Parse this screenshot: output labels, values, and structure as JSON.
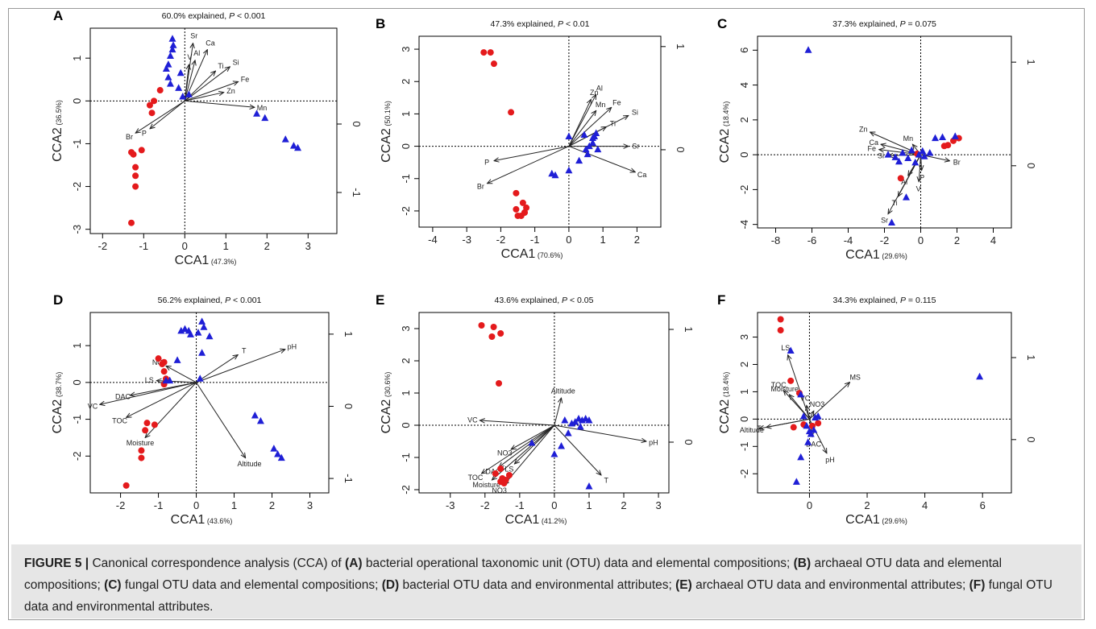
{
  "caption": {
    "figure_label": "FIGURE 5 |",
    "lead": " Canonical correspondence analysis (CCA) of ",
    "parts": [
      {
        "tag": "(A)",
        "text": " bacterial operational taxonomic unit (OTU) data and elemental compositions; "
      },
      {
        "tag": "(B)",
        "text": " archaeal OTU data and elemental compositions; "
      },
      {
        "tag": "(C)",
        "text": " fungal OTU data and elemental compositions; "
      },
      {
        "tag": "(D)",
        "text": " bacterial OTU data and environmental attributes; "
      },
      {
        "tag": "(E)",
        "text": " archaeal OTU data and environmental attributes; "
      },
      {
        "tag": "(F)",
        "text": " fungal OTU data and environmental attributes."
      }
    ]
  },
  "colors": {
    "red": "#e41a1c",
    "blue": "#1f1fd6",
    "axis": "#000000",
    "arrow": "#222222"
  },
  "chart_data": [
    {
      "type": "scatter",
      "panel": "A",
      "title": "60.0% explained, ",
      "p_text": "P",
      "p_rel": " < 0.001",
      "xlabel": "CCA1",
      "xlabel_pct": "(47.3%)",
      "ylabel": "CCA2",
      "ylabel_pct": "(36.5%)",
      "xlim": [
        -2.3,
        3.7
      ],
      "ylim": [
        -3.1,
        1.7
      ],
      "y2lim": [
        -1.6,
        1.4
      ],
      "xticks": [
        "-2",
        "-1",
        "0",
        "1",
        "2",
        "3"
      ],
      "yticks": [
        "-3",
        "-2",
        "-1",
        "0",
        "1"
      ],
      "y2ticks": [
        "-1",
        "0"
      ],
      "red_points": [
        [
          -1.3,
          -2.85
        ],
        [
          -1.25,
          -1.25
        ],
        [
          -1.3,
          -1.2
        ],
        [
          -1.2,
          -1.55
        ],
        [
          -1.2,
          -1.75
        ],
        [
          -1.2,
          -2.0
        ],
        [
          -1.05,
          -1.15
        ],
        [
          -0.85,
          -0.1
        ],
        [
          -0.8,
          -0.28
        ],
        [
          -0.75,
          0.0
        ],
        [
          -0.6,
          0.25
        ]
      ],
      "blue_points": [
        [
          -0.3,
          1.45
        ],
        [
          -0.28,
          1.3
        ],
        [
          -0.3,
          1.2
        ],
        [
          -0.35,
          1.05
        ],
        [
          -0.4,
          0.85
        ],
        [
          -0.45,
          0.75
        ],
        [
          -0.4,
          0.55
        ],
        [
          -0.35,
          0.4
        ],
        [
          -0.1,
          0.65
        ],
        [
          -0.15,
          0.3
        ],
        [
          0.1,
          0.15
        ],
        [
          -0.05,
          0.1
        ],
        [
          1.75,
          -0.3
        ],
        [
          1.95,
          -0.4
        ],
        [
          2.45,
          -0.9
        ],
        [
          2.65,
          -1.05
        ],
        [
          2.75,
          -1.1
        ]
      ],
      "arrows": [
        {
          "label": "Sr",
          "x": 0.2,
          "y": 1.35
        },
        {
          "label": "Ca",
          "x": 0.55,
          "y": 1.2
        },
        {
          "label": "V",
          "x": 0.1,
          "y": 0.85
        },
        {
          "label": "Al",
          "x": 0.25,
          "y": 0.95
        },
        {
          "label": "Ti",
          "x": 0.75,
          "y": 0.7
        },
        {
          "label": "Si",
          "x": 1.1,
          "y": 0.8
        },
        {
          "label": "Fe",
          "x": 1.3,
          "y": 0.45
        },
        {
          "label": "Zn",
          "x": 0.95,
          "y": 0.2
        },
        {
          "label": "Mn",
          "x": 1.7,
          "y": -0.15
        },
        {
          "label": "Br",
          "x": -1.2,
          "y": -0.75
        },
        {
          "label": "P",
          "x": -0.85,
          "y": -0.65
        }
      ]
    },
    {
      "type": "scatter",
      "panel": "B",
      "title": "47.3% explained, ",
      "p_text": "P",
      "p_rel": " < 0.01",
      "xlabel": "CCA1",
      "xlabel_pct": "(70.6%)",
      "ylabel": "CCA2",
      "ylabel_pct": "(50.1%)",
      "xlim": [
        -4.4,
        2.7
      ],
      "ylim": [
        -2.5,
        3.4
      ],
      "y2lim": [
        -0.75,
        1.1
      ],
      "xticks": [
        "-4",
        "-3",
        "-2",
        "-1",
        "0",
        "1",
        "2"
      ],
      "yticks": [
        "-2",
        "-1",
        "0",
        "1",
        "2",
        "3"
      ],
      "y2ticks": [
        "0",
        "1"
      ],
      "red_points": [
        [
          -2.5,
          2.9
        ],
        [
          -2.3,
          2.9
        ],
        [
          -2.2,
          2.55
        ],
        [
          -1.7,
          1.05
        ],
        [
          -1.55,
          -1.45
        ],
        [
          -1.55,
          -1.95
        ],
        [
          -1.35,
          -1.75
        ],
        [
          -1.25,
          -1.9
        ],
        [
          -1.3,
          -2.05
        ],
        [
          -1.5,
          -2.15
        ],
        [
          -1.4,
          -2.15
        ],
        [
          -1.3,
          -2.05
        ]
      ],
      "blue_points": [
        [
          -0.5,
          -0.85
        ],
        [
          -0.4,
          -0.9
        ],
        [
          0.0,
          -0.75
        ],
        [
          0.0,
          0.3
        ],
        [
          0.3,
          -0.45
        ],
        [
          0.45,
          0.35
        ],
        [
          0.5,
          -0.1
        ],
        [
          0.55,
          -0.25
        ],
        [
          0.6,
          0.0
        ],
        [
          0.7,
          0.1
        ],
        [
          0.7,
          0.25
        ],
        [
          0.75,
          0.3
        ],
        [
          0.8,
          0.4
        ],
        [
          0.85,
          -0.1
        ]
      ],
      "arrows": [
        {
          "label": "Zn",
          "x": 0.65,
          "y": 1.45
        },
        {
          "label": "Al",
          "x": 0.8,
          "y": 1.6
        },
        {
          "label": "Mn",
          "x": 0.8,
          "y": 1.1
        },
        {
          "label": "Fe",
          "x": 1.25,
          "y": 1.2
        },
        {
          "label": "Si",
          "x": 1.75,
          "y": 0.95
        },
        {
          "label": "Ti",
          "x": 1.1,
          "y": 0.6
        },
        {
          "label": "Sr",
          "x": 1.75,
          "y": 0.0
        },
        {
          "label": "Ca",
          "x": 1.95,
          "y": -0.8
        },
        {
          "label": "P",
          "x": -2.2,
          "y": -0.45
        },
        {
          "label": "Br",
          "x": -2.4,
          "y": -1.15
        }
      ]
    },
    {
      "type": "scatter",
      "panel": "C",
      "title": "37.3% explained, ",
      "p_text": "P",
      "p_rel": " = 0.075",
      "xlabel": "CCA1",
      "xlabel_pct": "(29.6%)",
      "ylabel": "CCA2",
      "ylabel_pct": "(18.4%)",
      "xlim": [
        -9.0,
        5.0
      ],
      "ylim": [
        -4.2,
        6.8
      ],
      "y2lim": [
        -0.6,
        1.25
      ],
      "xticks": [
        "-8",
        "-6",
        "-4",
        "-2",
        "0",
        "2",
        "4"
      ],
      "yticks": [
        "-4",
        "-2",
        "0",
        "2",
        "4",
        "6"
      ],
      "y2ticks": [
        "0",
        "1"
      ],
      "red_points": [
        [
          -1.1,
          -1.35
        ],
        [
          1.3,
          0.5
        ],
        [
          1.5,
          0.55
        ],
        [
          1.8,
          0.8
        ],
        [
          2.1,
          0.95
        ],
        [
          -0.2,
          0.05
        ]
      ],
      "blue_points": [
        [
          -6.2,
          6.0
        ],
        [
          -1.6,
          -3.9
        ],
        [
          -0.8,
          -2.45
        ],
        [
          -1.8,
          0.0
        ],
        [
          -1.4,
          -0.15
        ],
        [
          -1.2,
          -0.4
        ],
        [
          -1.0,
          0.1
        ],
        [
          -0.7,
          -0.2
        ],
        [
          -0.5,
          0.25
        ],
        [
          -0.3,
          -0.45
        ],
        [
          -0.1,
          0.0
        ],
        [
          0.1,
          0.2
        ],
        [
          0.2,
          -0.1
        ],
        [
          0.5,
          0.1
        ],
        [
          0.8,
          0.95
        ],
        [
          1.2,
          1.0
        ],
        [
          1.9,
          1.05
        ]
      ],
      "arrows": [
        {
          "label": "Zn",
          "x": -2.8,
          "y": 1.3
        },
        {
          "label": "Ca",
          "x": -2.2,
          "y": 0.6
        },
        {
          "label": "Fe",
          "x": -2.3,
          "y": 0.3
        },
        {
          "label": "Si",
          "x": -1.8,
          "y": -0.05
        },
        {
          "label": "Mn",
          "x": -0.45,
          "y": 0.6
        },
        {
          "label": "P",
          "x": 0.05,
          "y": -0.9
        },
        {
          "label": "Br",
          "x": 1.6,
          "y": -0.35
        },
        {
          "label": "Al",
          "x": -0.7,
          "y": -1.2
        },
        {
          "label": "V",
          "x": -0.1,
          "y": -1.55
        },
        {
          "label": "Ti",
          "x": -1.25,
          "y": -2.4
        },
        {
          "label": "Sr",
          "x": -1.8,
          "y": -3.4
        }
      ]
    },
    {
      "type": "scatter",
      "panel": "D",
      "title": "56.2% explained, ",
      "p_text": "P",
      "p_rel": " < 0.001",
      "xlabel": "CCA1",
      "xlabel_pct": "(43.6%)",
      "ylabel": "CCA2",
      "ylabel_pct": "(38.7%)",
      "xlim": [
        -2.8,
        3.5
      ],
      "ylim": [
        -3.0,
        1.9
      ],
      "y2lim": [
        -1.2,
        1.3
      ],
      "xticks": [
        "-2",
        "-1",
        "0",
        "1",
        "2",
        "3"
      ],
      "yticks": [
        "-2",
        "-1",
        "0",
        "1"
      ],
      "y2ticks": [
        "-1",
        "0",
        "1"
      ],
      "red_points": [
        [
          -1.85,
          -2.8
        ],
        [
          -1.45,
          -2.05
        ],
        [
          -1.45,
          -1.85
        ],
        [
          -1.3,
          -1.1
        ],
        [
          -1.35,
          -1.3
        ],
        [
          -1.1,
          -1.15
        ],
        [
          -1.0,
          0.65
        ],
        [
          -0.85,
          0.55
        ],
        [
          -0.9,
          0.5
        ],
        [
          -0.85,
          0.3
        ],
        [
          -0.8,
          0.1
        ],
        [
          -0.85,
          -0.05
        ]
      ],
      "blue_points": [
        [
          -0.8,
          0.05
        ],
        [
          -0.7,
          0.05
        ],
        [
          -0.5,
          0.6
        ],
        [
          -0.4,
          1.4
        ],
        [
          -0.3,
          1.45
        ],
        [
          -0.2,
          1.4
        ],
        [
          -0.15,
          1.3
        ],
        [
          0.05,
          1.35
        ],
        [
          0.15,
          1.65
        ],
        [
          0.2,
          1.5
        ],
        [
          0.35,
          1.25
        ],
        [
          0.15,
          0.8
        ],
        [
          0.1,
          0.1
        ],
        [
          1.55,
          -0.9
        ],
        [
          1.7,
          -1.05
        ],
        [
          2.05,
          -1.8
        ],
        [
          2.15,
          -1.95
        ],
        [
          2.25,
          -2.05
        ]
      ],
      "arrows": [
        {
          "label": "T",
          "x": 1.1,
          "y": 0.75
        },
        {
          "label": "pH",
          "x": 2.35,
          "y": 0.9
        },
        {
          "label": "Altitude",
          "x": 1.3,
          "y": -2.05
        },
        {
          "label": "NO3",
          "x": -0.8,
          "y": 0.45
        },
        {
          "label": "LS",
          "x": -1.05,
          "y": 0.05
        },
        {
          "label": "DAC",
          "x": -1.75,
          "y": -0.35
        },
        {
          "label": "VC",
          "x": -2.55,
          "y": -0.6
        },
        {
          "label": "TOC",
          "x": -1.85,
          "y": -0.95
        },
        {
          "label": "Moisture",
          "x": -1.35,
          "y": -1.5
        }
      ]
    },
    {
      "type": "scatter",
      "panel": "E",
      "title": "43.6% explained, ",
      "p_text": "P",
      "p_rel": " < 0.05",
      "xlabel": "CCA1",
      "xlabel_pct": "(41.2%)",
      "ylabel": "CCA2",
      "ylabel_pct": "(30.6%)",
      "xlim": [
        -3.9,
        3.3
      ],
      "ylim": [
        -2.1,
        3.5
      ],
      "y2lim": [
        -0.45,
        1.15
      ],
      "xticks": [
        "-3",
        "-2",
        "-1",
        "0",
        "1",
        "2",
        "3"
      ],
      "yticks": [
        "-2",
        "-1",
        "0",
        "1",
        "2",
        "3"
      ],
      "y2ticks": [
        "0",
        "1"
      ],
      "red_points": [
        [
          -2.1,
          3.1
        ],
        [
          -1.75,
          3.05
        ],
        [
          -1.8,
          2.75
        ],
        [
          -1.55,
          2.85
        ],
        [
          -1.6,
          1.3
        ],
        [
          -1.7,
          -1.5
        ],
        [
          -1.55,
          -1.35
        ],
        [
          -1.5,
          -1.65
        ],
        [
          -1.55,
          -1.75
        ],
        [
          -1.45,
          -1.8
        ],
        [
          -1.4,
          -1.7
        ],
        [
          -1.3,
          -1.55
        ]
      ],
      "blue_points": [
        [
          0.3,
          0.15
        ],
        [
          0.4,
          -0.25
        ],
        [
          0.5,
          0.05
        ],
        [
          0.6,
          0.1
        ],
        [
          0.7,
          0.2
        ],
        [
          0.8,
          0.15
        ],
        [
          0.9,
          0.2
        ],
        [
          1.0,
          0.15
        ],
        [
          0.75,
          -0.05
        ],
        [
          0.2,
          -0.65
        ],
        [
          0.0,
          -0.9
        ],
        [
          -0.65,
          -0.55
        ],
        [
          1.0,
          -1.9
        ]
      ],
      "arrows": [
        {
          "label": "Altitude",
          "x": 0.2,
          "y": 0.85
        },
        {
          "label": "VC",
          "x": -2.15,
          "y": 0.15
        },
        {
          "label": "pH",
          "x": 2.65,
          "y": -0.5
        },
        {
          "label": "T",
          "x": 1.35,
          "y": -1.55
        },
        {
          "label": "NO3",
          "x": -1.25,
          "y": -0.75
        },
        {
          "label": "LS",
          "x": -1.15,
          "y": -1.2
        },
        {
          "label": "DAC",
          "x": -1.6,
          "y": -1.3
        },
        {
          "label": "TOC",
          "x": -2.1,
          "y": -1.5
        },
        {
          "label": "Moisture",
          "x": -1.8,
          "y": -1.7
        },
        {
          "label": "NO3",
          "x": -1.45,
          "y": -1.85
        }
      ]
    },
    {
      "type": "scatter",
      "panel": "F",
      "title": "34.3% explained, ",
      "p_text": "P",
      "p_rel": " = 0.115",
      "xlabel": "CCA1",
      "xlabel_pct": "(29.6%)",
      "ylabel": "CCA2",
      "ylabel_pct": "(18.4%)",
      "xlim": [
        -1.8,
        7.0
      ],
      "ylim": [
        -2.7,
        3.9
      ],
      "y2lim": [
        -0.65,
        1.55
      ],
      "xticks": [
        "0",
        "2",
        "4",
        "6"
      ],
      "yticks": [
        "-2",
        "-1",
        "0",
        "1",
        "2",
        "3"
      ],
      "y2ticks": [
        "0",
        "1"
      ],
      "red_points": [
        [
          -1.0,
          3.65
        ],
        [
          -1.0,
          3.25
        ],
        [
          -0.65,
          1.4
        ],
        [
          -0.55,
          -0.3
        ],
        [
          -0.35,
          0.95
        ],
        [
          -0.2,
          -0.2
        ],
        [
          0.1,
          -0.25
        ],
        [
          0.3,
          -0.15
        ]
      ],
      "blue_points": [
        [
          -0.65,
          2.5
        ],
        [
          -0.3,
          0.9
        ],
        [
          -0.2,
          0.1
        ],
        [
          -0.1,
          -0.25
        ],
        [
          0.0,
          -0.45
        ],
        [
          0.05,
          -0.55
        ],
        [
          0.15,
          -0.4
        ],
        [
          0.2,
          0.05
        ],
        [
          0.3,
          0.1
        ],
        [
          -0.05,
          -0.85
        ],
        [
          -0.3,
          -1.4
        ],
        [
          -0.45,
          -2.3
        ],
        [
          5.9,
          1.55
        ]
      ],
      "arrows": [
        {
          "label": "LS",
          "x": -0.75,
          "y": 2.35
        },
        {
          "label": "TOC",
          "x": -0.9,
          "y": 1.05
        },
        {
          "label": "Moisture",
          "x": -0.7,
          "y": 0.9
        },
        {
          "label": "VC",
          "x": -0.1,
          "y": 0.5
        },
        {
          "label": "NO3",
          "x": 0.15,
          "y": 0.3
        },
        {
          "label": "MS",
          "x": 1.4,
          "y": 1.35
        },
        {
          "label": "T",
          "x": -1.5,
          "y": -0.3
        },
        {
          "label": "Altitude",
          "x": -1.75,
          "y": -0.35
        },
        {
          "label": "DAC",
          "x": 0.1,
          "y": -0.65
        },
        {
          "label": "pH",
          "x": 0.6,
          "y": -1.25
        }
      ]
    }
  ]
}
